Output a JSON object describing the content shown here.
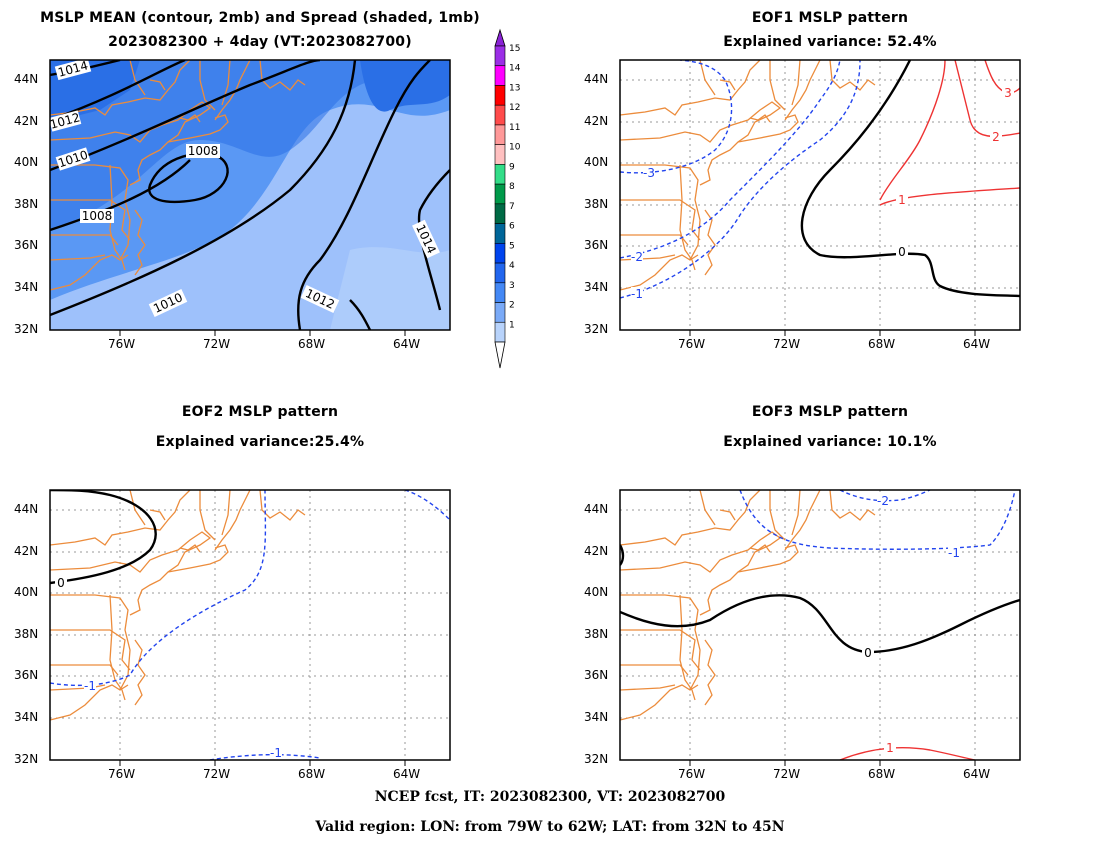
{
  "panels": [
    {
      "id": "mean-spread",
      "title_lines": [
        "MSLP MEAN (contour, 2mb) and Spread (shaded, 1mb)",
        "2023082300 + 4day (VT:2023082700)"
      ],
      "contour_labels": [
        "1014",
        "1012",
        "1010",
        "1008",
        "1008",
        "1010",
        "1012",
        "1014"
      ]
    },
    {
      "id": "eof1",
      "title_lines": [
        "EOF1 MSLP pattern",
        "Explained variance: 52.4%"
      ],
      "contour_labels": [
        "-3",
        "-2",
        "-1",
        "0",
        "1",
        "2",
        "3"
      ]
    },
    {
      "id": "eof2",
      "title_lines": [
        "EOF2 MSLP pattern",
        "Explained variance:25.4%"
      ],
      "contour_labels": [
        "0",
        "-1",
        "-1"
      ]
    },
    {
      "id": "eof3",
      "title_lines": [
        "EOF3 MSLP pattern",
        "Explained variance: 10.1%"
      ],
      "contour_labels": [
        "-2",
        "-1",
        "0",
        "1"
      ]
    }
  ],
  "axes": {
    "lat_labels": [
      "44N",
      "42N",
      "40N",
      "38N",
      "36N",
      "34N",
      "32N"
    ],
    "lon_labels": [
      "76W",
      "72W",
      "68W",
      "64W"
    ]
  },
  "colorbar": {
    "labels": [
      "15",
      "14",
      "13",
      "12",
      "11",
      "10",
      "9",
      "8",
      "7",
      "6",
      "5",
      "4",
      "3",
      "2",
      "1"
    ],
    "colors": [
      "#9b2ee6",
      "#ff00ff",
      "#ff0000",
      "#ff4c4c",
      "#ff9999",
      "#ffc0c0",
      "#33dd88",
      "#009a4a",
      "#006a45",
      "#006699",
      "#0044ee",
      "#2266ee",
      "#4488f5",
      "#7aaaf7",
      "#b8d3fb"
    ]
  },
  "colors": {
    "coast": "#ec8c3c",
    "negative_contour": "#2244ee",
    "positive_contour": "#ee3333",
    "zero_contour": "#000000",
    "shade_light": "#9ec1fb",
    "shade_mid": "#5a98f4",
    "shade_dark": "#2a6fe6"
  },
  "footer": {
    "line1": "NCEP fcst, IT: 2023082300, VT: 2023082700",
    "line2": "Valid region: LON: from 79W to 62W; LAT: from 32N to 45N"
  }
}
